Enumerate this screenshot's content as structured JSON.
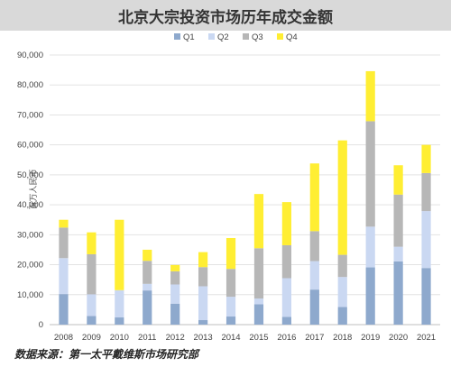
{
  "chart_data": {
    "type": "bar",
    "stacked": true,
    "title": "北京大宗投资市场历年成交金额",
    "ylabel": "百万人民币",
    "xlabel": "",
    "ylim": [
      0,
      90000
    ],
    "yticks": [
      0,
      10000,
      20000,
      30000,
      40000,
      50000,
      60000,
      70000,
      80000,
      90000
    ],
    "ytick_labels": [
      "0",
      "10,000",
      "20,000",
      "30,000",
      "40,000",
      "50,000",
      "60,000",
      "70,000",
      "80,000",
      "90,000"
    ],
    "grid": true,
    "legend_position": "top",
    "categories": [
      "2008",
      "2009",
      "2010",
      "2011",
      "2012",
      "2013",
      "2014",
      "2015",
      "2016",
      "2017",
      "2018",
      "2019",
      "2020",
      "2021"
    ],
    "series": [
      {
        "name": "Q1",
        "color": "#8ea9cd",
        "values": [
          10200,
          2900,
          2400,
          11400,
          7000,
          1500,
          2700,
          6800,
          2600,
          11700,
          5900,
          19100,
          21100,
          18900
        ]
      },
      {
        "name": "Q2",
        "color": "#cad8f2",
        "values": [
          12000,
          7200,
          9100,
          2200,
          6400,
          11300,
          6600,
          1900,
          12900,
          9500,
          10000,
          13600,
          4900,
          19000
        ]
      },
      {
        "name": "Q3",
        "color": "#b7b7b7",
        "values": [
          10200,
          13400,
          0,
          7700,
          4400,
          6400,
          9300,
          16800,
          11000,
          10000,
          7400,
          35200,
          17400,
          12700
        ]
      },
      {
        "name": "Q4",
        "color": "#ffee33",
        "values": [
          2600,
          7300,
          23500,
          3700,
          2100,
          5000,
          10300,
          18100,
          14400,
          22600,
          38200,
          16700,
          9800,
          9400
        ]
      }
    ]
  },
  "source_note": "数据来源：第一太平戴维斯市场研究部"
}
